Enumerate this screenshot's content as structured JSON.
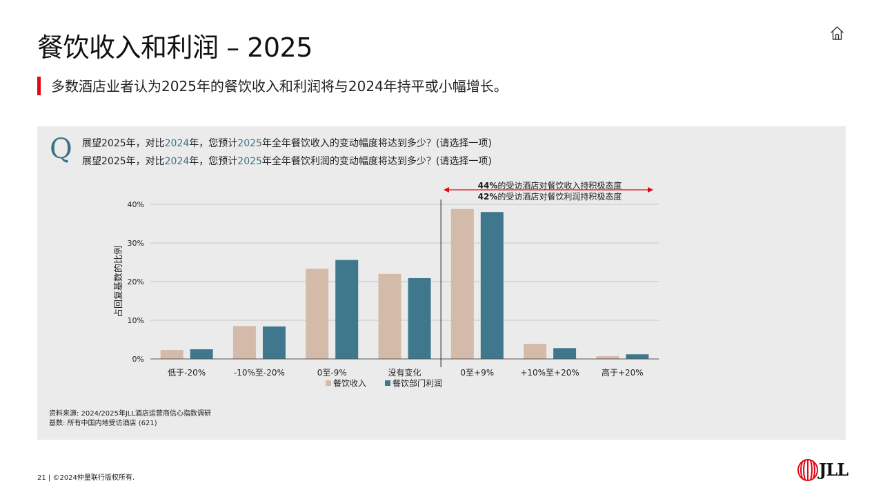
{
  "page": {
    "title": "餐饮收入和利润 – 2025",
    "subtitle": "多数酒店业者认为2025年的餐饮收入和利润将与2024年持平或小幅增长。",
    "question": {
      "letter": "Q",
      "line1": {
        "a": "展望2025年，对比",
        "b": "2024",
        "c": "年，您预计",
        "d": "2025",
        "e": "年全年餐饮收入的变动幅度将达到多少？(请选择一项)"
      },
      "line2": {
        "a": "展望2025年，对比",
        "b": "2024",
        "c": "年，您预计",
        "d": "2025",
        "e": "年全年餐饮利润的变动幅度将达到多少？(请选择一项)"
      }
    },
    "source_line1": "资料来源: 2024/2025年JLL酒店运营商信心指数调研",
    "source_line2": "基数: 所有中国内地受访酒店 (621)",
    "footer": "21 | ©2024仲量联行版权所有.",
    "logo_text": "JLL",
    "icons": {
      "home": "home-icon",
      "logo": "jll-logo-icon"
    },
    "colors": {
      "accent_red": "#e30613",
      "highlight_blue": "#3d7286",
      "panel_bg": "#ebebeb"
    }
  },
  "chart_data": {
    "type": "bar",
    "categories": [
      "低于-20%",
      "-10%至-20%",
      "0至-9%",
      "没有变化",
      "0至+9%",
      "+10%至+20%",
      "高于+20%"
    ],
    "series": [
      {
        "name": "餐饮收入",
        "color": "#d4bba9",
        "values": [
          2.3,
          8.5,
          23.3,
          22.0,
          38.8,
          3.9,
          0.7
        ]
      },
      {
        "name": "餐饮部门利润",
        "color": "#3f788d",
        "values": [
          2.5,
          8.4,
          25.6,
          20.9,
          38.0,
          2.8,
          1.2
        ]
      }
    ],
    "ylabel": "占回复基数的比例",
    "ylim": [
      0,
      40
    ],
    "yticks": [
      "0%",
      "10%",
      "20%",
      "30%",
      "40%"
    ],
    "grid": true,
    "legend": "bottom",
    "annotations": [
      {
        "bold": "44%",
        "text": "的受访酒店对餐饮收入持积极态度"
      },
      {
        "bold": "42%",
        "text": "的受访酒店对餐饮利润持积极态度"
      }
    ]
  }
}
